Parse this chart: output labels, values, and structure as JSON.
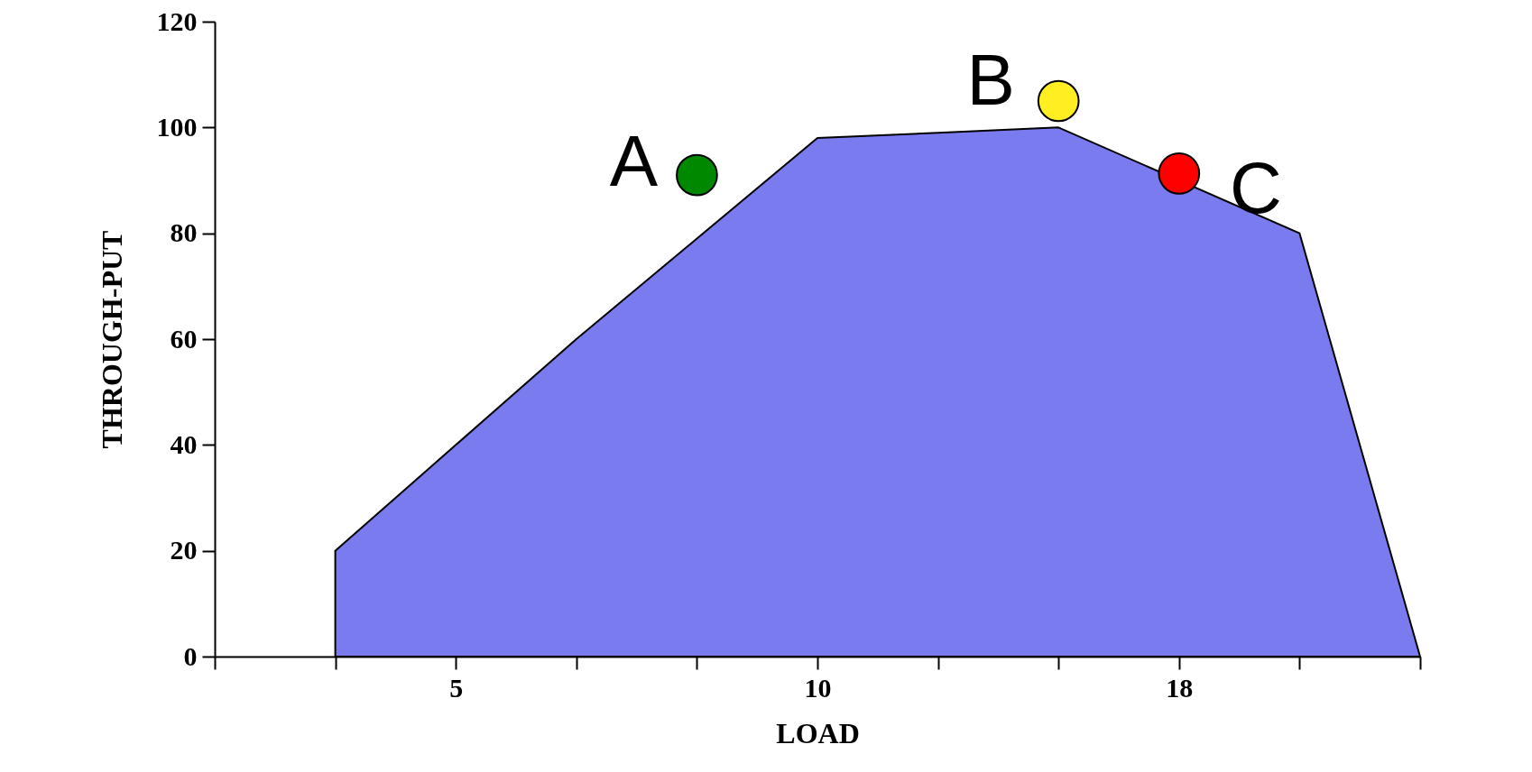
{
  "chart_data": {
    "type": "area",
    "xlabel": "LOAD",
    "ylabel": "THROUGH-PUT",
    "categories": [
      null,
      null,
      "5",
      null,
      null,
      "10",
      null,
      null,
      "18",
      null,
      null
    ],
    "ylim": [
      0,
      120
    ],
    "yticks": [
      0,
      20,
      40,
      60,
      80,
      100,
      120
    ],
    "series": [
      {
        "color": "#7b7bf0",
        "values": [
          null,
          20,
          40,
          60,
          null,
          98,
          99,
          100,
          null,
          80,
          0
        ]
      },
      {
        "type": "scatter",
        "marker": "circle",
        "colors": [
          null,
          null,
          null,
          null,
          "#008800",
          null,
          null,
          "#ffee22",
          "#ff0000",
          null,
          null
        ],
        "values": [
          null,
          null,
          null,
          null,
          91,
          null,
          null,
          105,
          91.3,
          null,
          null
        ]
      }
    ],
    "annotations": [
      "A",
      "B",
      "C"
    ],
    "grid": false
  }
}
